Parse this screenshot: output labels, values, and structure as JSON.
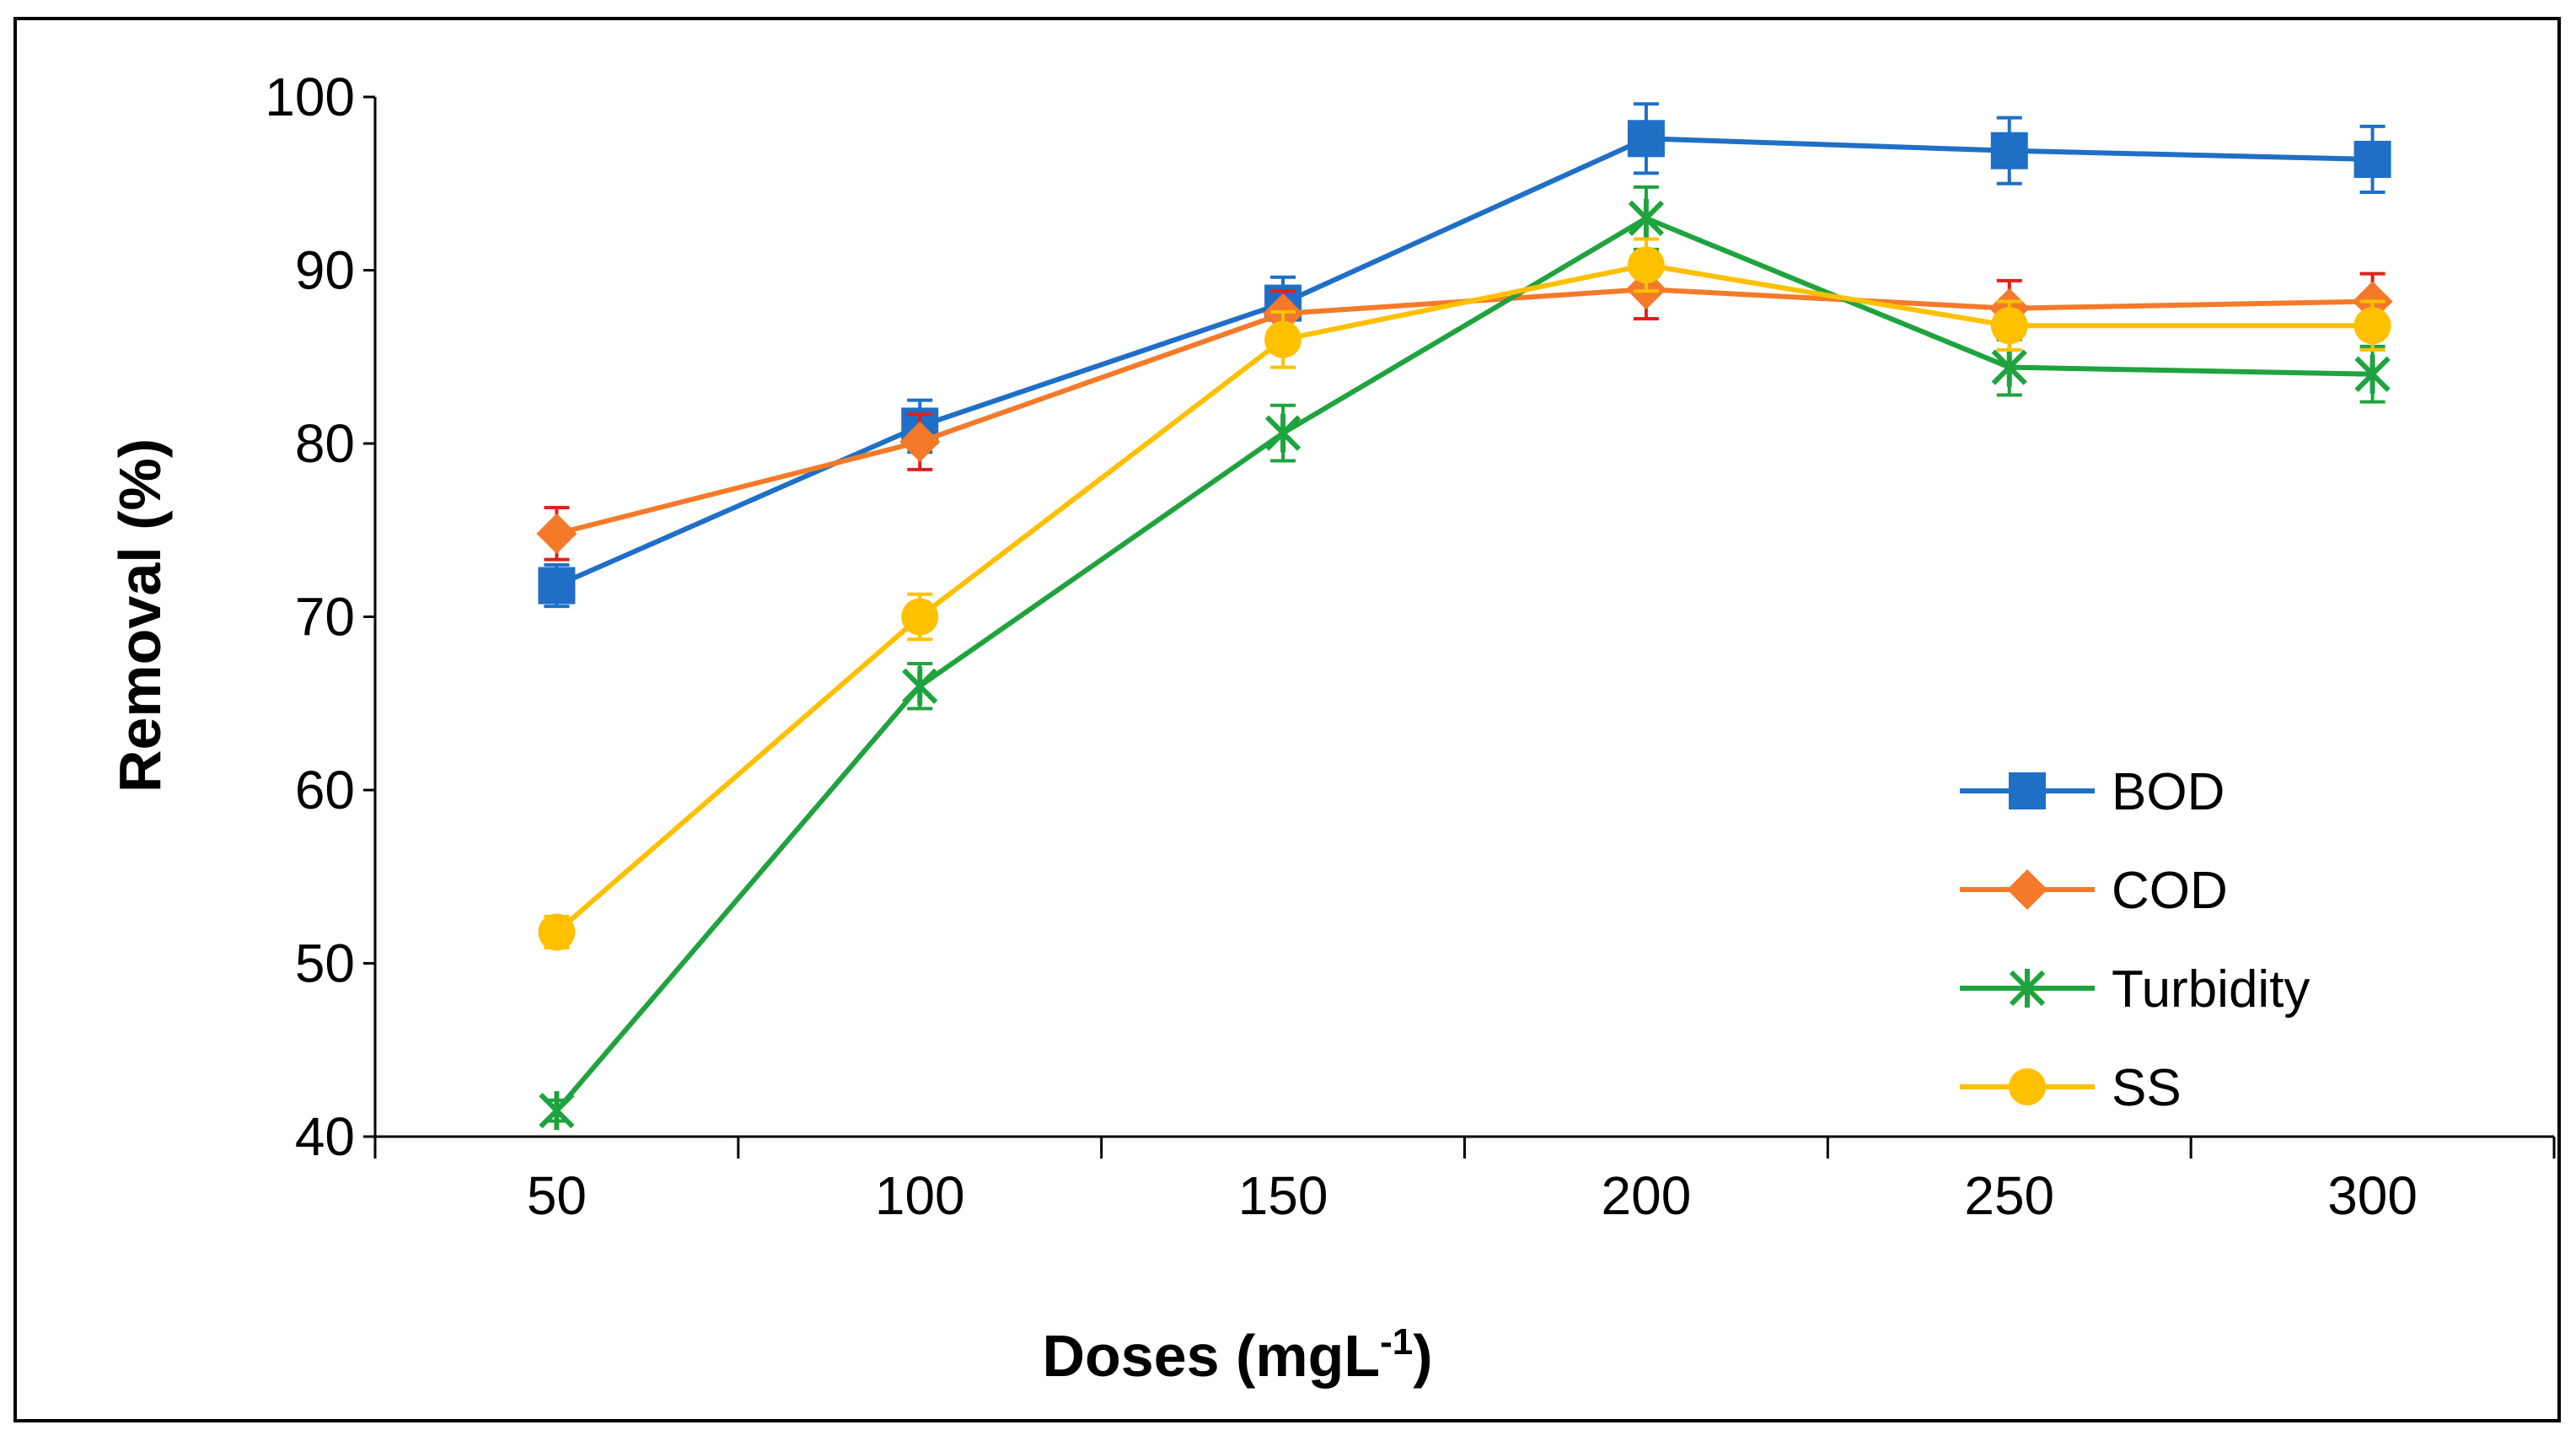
{
  "chart_data": {
    "type": "line",
    "title": "",
    "xlabel": "Doses (mgL",
    "xlabel_superscript": "-1",
    "xlabel_suffix": ")",
    "ylabel": "Removal (%)",
    "ylim": [
      40,
      100
    ],
    "y_ticks": [
      "40",
      "50",
      "60",
      "70",
      "80",
      "90",
      "100"
    ],
    "categories": [
      "50",
      "100",
      "150",
      "200",
      "250",
      "300"
    ],
    "legend_position": "bottom-right, inside plot",
    "series": [
      {
        "name": "BOD",
        "color": "#1f6fc6",
        "marker": "square",
        "values": [
          71.8,
          81.0,
          88.1,
          97.6,
          96.9,
          96.4
        ],
        "errors": [
          1.2,
          1.5,
          1.5,
          2.0,
          1.9,
          1.9
        ],
        "error_color": "#1f6fc6"
      },
      {
        "name": "COD",
        "color": "#f47a2a",
        "marker": "diamond",
        "values": [
          74.8,
          80.1,
          87.5,
          88.9,
          87.8,
          88.2
        ],
        "errors": [
          1.5,
          1.6,
          1.3,
          1.7,
          1.6,
          1.6
        ],
        "error_color": "#e0201c"
      },
      {
        "name": "Turbidity",
        "color": "#1fa33e",
        "marker": "asterisk",
        "values": [
          41.5,
          66.0,
          80.6,
          93.0,
          84.4,
          84.0
        ],
        "errors": [
          0.6,
          1.3,
          1.6,
          1.8,
          1.6,
          1.6
        ],
        "error_color": "#1fa33e"
      },
      {
        "name": "SS",
        "color": "#ffc000",
        "marker": "circle",
        "values": [
          51.8,
          70.0,
          86.0,
          90.3,
          86.8,
          86.8
        ],
        "errors": [
          0.9,
          1.3,
          1.6,
          1.5,
          1.4,
          1.4
        ],
        "error_color": "#ffc000"
      }
    ]
  }
}
